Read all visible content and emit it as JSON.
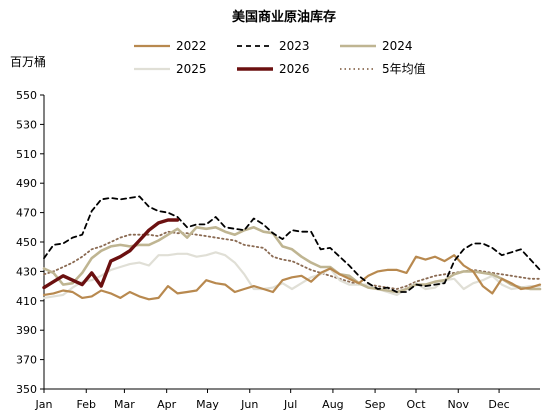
{
  "chart_data": {
    "type": "line",
    "title": "美国商业原油库存",
    "ylabel": "百万桶",
    "xlabel": "",
    "ylim": [
      350,
      550
    ],
    "yticks": [
      350,
      370,
      390,
      410,
      430,
      450,
      470,
      490,
      510,
      530,
      550
    ],
    "x_unit": "week",
    "xlim": [
      0,
      52
    ],
    "month_labels": [
      "Jan",
      "Feb",
      "Mar",
      "Apr",
      "May",
      "Jun",
      "Jul",
      "Aug",
      "Sep",
      "Oct",
      "Nov",
      "Dec"
    ],
    "month_tick_weeks": [
      0,
      4.43,
      8.43,
      12.86,
      17.14,
      21.57,
      25.86,
      30.29,
      34.71,
      39,
      43.43,
      47.71
    ],
    "grid": false,
    "legend_position": "top",
    "series": [
      {
        "name": "2022",
        "color": "#b8894f",
        "dash": "solid",
        "width": 2.2,
        "x": [
          0,
          1,
          2,
          3,
          4,
          5,
          6,
          7,
          8,
          9,
          10,
          11,
          12,
          13,
          14,
          15,
          16,
          17,
          18,
          19,
          20,
          21,
          22,
          23,
          24,
          25,
          26,
          27,
          28,
          29,
          30,
          31,
          32,
          33,
          34,
          35,
          36,
          37,
          38,
          39,
          40,
          41,
          42,
          43,
          44,
          45,
          46,
          47,
          48,
          49,
          50,
          51,
          52
        ],
        "values": [
          414,
          415,
          417,
          416,
          412,
          413,
          417,
          415,
          412,
          416,
          413,
          411,
          412,
          420,
          415,
          416,
          417,
          424,
          422,
          421,
          416,
          418,
          420,
          418,
          416,
          424,
          426,
          427,
          423,
          429,
          432,
          428,
          425,
          422,
          427,
          430,
          431,
          431,
          429,
          440,
          438,
          440,
          437,
          441,
          434,
          430,
          420,
          415,
          425,
          422,
          418,
          419,
          421
        ]
      },
      {
        "name": "2023",
        "color": "#000000",
        "dash": "5,4",
        "width": 1.8,
        "x": [
          0,
          1,
          2,
          3,
          4,
          5,
          6,
          7,
          8,
          9,
          10,
          11,
          12,
          13,
          14,
          15,
          16,
          17,
          18,
          19,
          20,
          21,
          22,
          23,
          24,
          25,
          26,
          27,
          28,
          29,
          30,
          31,
          32,
          33,
          34,
          35,
          36,
          37,
          38,
          39,
          40,
          41,
          42,
          43,
          44,
          45,
          46,
          47,
          48,
          49,
          50,
          51,
          52
        ],
        "values": [
          439,
          448,
          449,
          453,
          455,
          471,
          479,
          480,
          479,
          480,
          481,
          474,
          471,
          470,
          467,
          460,
          462,
          462,
          467,
          460,
          459,
          458,
          466,
          462,
          456,
          452,
          458,
          457,
          457,
          445,
          446,
          440,
          434,
          427,
          422,
          418,
          419,
          416,
          416,
          421,
          420,
          421,
          422,
          437,
          445,
          449,
          449,
          446,
          441,
          443,
          445,
          438,
          431
        ]
      },
      {
        "name": "2024",
        "color": "#bfb592",
        "dash": "solid",
        "width": 2.6,
        "x": [
          0,
          1,
          2,
          3,
          4,
          5,
          6,
          7,
          8,
          9,
          10,
          11,
          12,
          13,
          14,
          15,
          16,
          17,
          18,
          19,
          20,
          21,
          22,
          23,
          24,
          25,
          26,
          27,
          28,
          29,
          30,
          31,
          32,
          33,
          34,
          35,
          36,
          37,
          38,
          39,
          40,
          41,
          42,
          43,
          44,
          45,
          46,
          47,
          48,
          49,
          50,
          51,
          52
        ],
        "values": [
          432,
          429,
          421,
          422,
          429,
          439,
          444,
          447,
          448,
          447,
          448,
          448,
          451,
          455,
          459,
          453,
          460,
          459,
          460,
          457,
          455,
          458,
          460,
          457,
          456,
          447,
          445,
          440,
          436,
          433,
          433,
          428,
          427,
          422,
          419,
          418,
          417,
          416,
          418,
          421,
          421,
          423,
          424,
          428,
          430,
          430,
          429,
          428,
          425,
          421,
          419,
          418,
          418
        ]
      },
      {
        "name": "2025",
        "color": "#e0dfd6",
        "dash": "solid",
        "width": 2.2,
        "x": [
          0,
          1,
          2,
          3,
          4,
          5,
          6,
          7,
          8,
          9,
          10,
          11,
          12,
          13,
          14,
          15,
          16,
          17,
          18,
          19,
          20,
          21,
          22,
          23,
          24,
          25,
          26,
          27,
          28,
          29,
          30,
          31,
          32,
          33,
          34,
          35,
          36,
          37,
          38,
          39,
          40,
          41,
          42,
          43,
          44,
          45,
          46,
          47,
          48,
          49,
          50,
          51,
          52
        ],
        "values": [
          412,
          413,
          414,
          419,
          423,
          424,
          427,
          431,
          433,
          435,
          436,
          434,
          441,
          441,
          442,
          442,
          440,
          441,
          443,
          441,
          436,
          428,
          418,
          418,
          419,
          422,
          418,
          422,
          426,
          428,
          432,
          424,
          421,
          421,
          421,
          418,
          416,
          414,
          418,
          422,
          418,
          419,
          424,
          425,
          418,
          422,
          424,
          427,
          421,
          418,
          419,
          420,
          420
        ]
      },
      {
        "name": "2026",
        "color": "#6b1010",
        "dash": "solid",
        "width": 3.4,
        "x": [
          0,
          1,
          2,
          3,
          4,
          5,
          6,
          7,
          8,
          9,
          10,
          11,
          12,
          13,
          14
        ],
        "values": [
          419,
          423,
          427,
          424,
          421,
          429,
          420,
          437,
          440,
          444,
          451,
          458,
          463,
          465,
          465
        ]
      },
      {
        "name": "5年均值",
        "color": "#8a6a52",
        "dash": "1.5,3",
        "width": 1.8,
        "x": [
          0,
          1,
          2,
          3,
          4,
          5,
          6,
          7,
          8,
          9,
          10,
          11,
          12,
          13,
          14,
          15,
          16,
          17,
          18,
          19,
          20,
          21,
          22,
          23,
          24,
          25,
          26,
          27,
          28,
          29,
          30,
          31,
          32,
          33,
          34,
          35,
          36,
          37,
          38,
          39,
          40,
          41,
          42,
          43,
          44,
          45,
          46,
          47,
          48,
          49,
          50,
          51,
          52
        ],
        "values": [
          428,
          430,
          433,
          436,
          440,
          445,
          447,
          450,
          453,
          455,
          455,
          455,
          454,
          457,
          456,
          456,
          455,
          454,
          453,
          452,
          451,
          448,
          447,
          446,
          440,
          438,
          437,
          434,
          431,
          429,
          427,
          425,
          423,
          421,
          421,
          420,
          419,
          418,
          420,
          423,
          425,
          427,
          428,
          429,
          430,
          431,
          430,
          429,
          428,
          427,
          426,
          425,
          425
        ]
      }
    ]
  }
}
